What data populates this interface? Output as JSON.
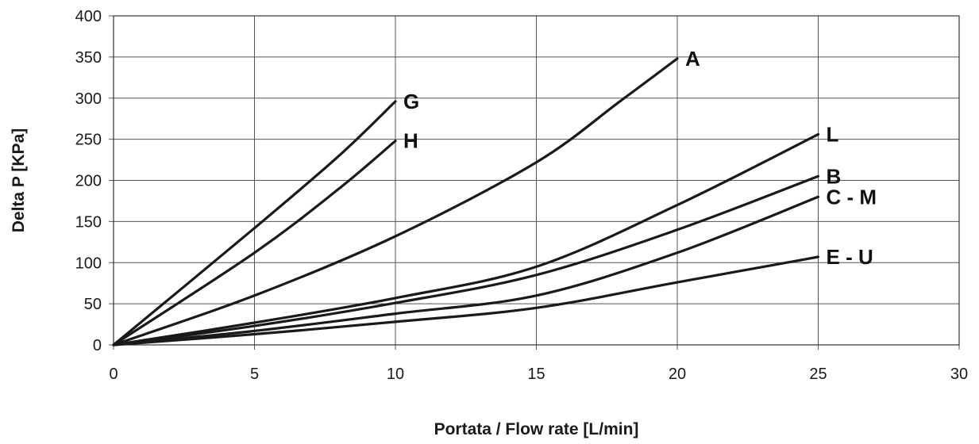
{
  "chart_data": {
    "type": "line",
    "xlabel": "Portata / Flow rate [L/min]",
    "ylabel": "Delta P [KPa]",
    "xlim": [
      0,
      30
    ],
    "ylim": [
      0,
      400
    ],
    "xticks": [
      0,
      5,
      10,
      15,
      20,
      25,
      30
    ],
    "yticks": [
      0,
      50,
      100,
      150,
      200,
      250,
      300,
      350,
      400
    ],
    "grid": true,
    "legend": "none",
    "series": [
      {
        "name": "A",
        "x": [
          0,
          5,
          10,
          15,
          18,
          20
        ],
        "y": [
          0,
          60,
          132,
          222,
          297,
          348
        ]
      },
      {
        "name": "G",
        "x": [
          0,
          5,
          8,
          10
        ],
        "y": [
          0,
          142,
          230,
          296
        ]
      },
      {
        "name": "H",
        "x": [
          0,
          5,
          8,
          10
        ],
        "y": [
          0,
          112,
          190,
          248
        ]
      },
      {
        "name": "L",
        "x": [
          0,
          5,
          10,
          15,
          20,
          25
        ],
        "y": [
          0,
          27,
          57,
          95,
          170,
          256
        ]
      },
      {
        "name": "B",
        "x": [
          0,
          5,
          10,
          15,
          20,
          25
        ],
        "y": [
          0,
          23,
          51,
          85,
          140,
          205
        ]
      },
      {
        "name": "C - M",
        "x": [
          0,
          5,
          10,
          15,
          20,
          25
        ],
        "y": [
          0,
          17,
          38,
          60,
          112,
          180
        ]
      },
      {
        "name": "E - U",
        "x": [
          0,
          5,
          10,
          15,
          20,
          25
        ],
        "y": [
          0,
          13,
          28,
          45,
          76,
          107
        ]
      }
    ]
  }
}
